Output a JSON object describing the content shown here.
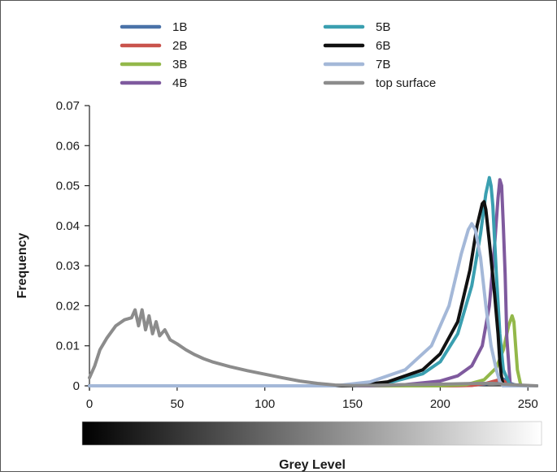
{
  "chart_data": {
    "type": "line",
    "title": "",
    "xlabel": "Grey Level",
    "ylabel": "Frequency",
    "xlim": [
      0,
      255
    ],
    "ylim": [
      0,
      0.07
    ],
    "x_ticks": [
      0,
      50,
      100,
      150,
      200,
      250
    ],
    "y_ticks": [
      0,
      0.01,
      0.02,
      0.03,
      0.04,
      0.05,
      0.06,
      0.07
    ],
    "x_tick_labels": [
      "0",
      "50",
      "100",
      "150",
      "200",
      "250"
    ],
    "y_tick_labels": [
      "0",
      "0.01",
      "0.02",
      "0.03",
      "0.04",
      "0.05",
      "0.06",
      "0.07"
    ],
    "grid": false,
    "legend_position": "top",
    "colorbar": "grayscale gradient from black (0) to white (255) below x-axis",
    "series": [
      {
        "name": "1B",
        "color": "#4a72a8",
        "x": [
          0,
          200,
          215,
          225,
          230,
          233,
          236,
          238,
          240,
          243,
          246,
          255
        ],
        "y": [
          0,
          0,
          0.0001,
          0.0004,
          0.0008,
          0.0013,
          0.0017,
          0.0012,
          0.0006,
          0.0002,
          0,
          0
        ]
      },
      {
        "name": "2B",
        "color": "#c9534c",
        "x": [
          0,
          205,
          218,
          226,
          231,
          234,
          236,
          238,
          240,
          243,
          255
        ],
        "y": [
          0,
          0,
          0.0001,
          0.0006,
          0.0012,
          0.0016,
          0.0013,
          0.0007,
          0.0003,
          0,
          0
        ]
      },
      {
        "name": "3B",
        "color": "#93b84a",
        "x": [
          0,
          200,
          215,
          225,
          232,
          236,
          239,
          241,
          242,
          243,
          244,
          246,
          255
        ],
        "y": [
          0,
          0,
          0.0003,
          0.0015,
          0.0045,
          0.009,
          0.015,
          0.0175,
          0.016,
          0.01,
          0.004,
          0,
          0
        ]
      },
      {
        "name": "4B",
        "color": "#7f5a9e",
        "x": [
          0,
          160,
          180,
          200,
          210,
          218,
          224,
          228,
          231,
          233,
          234,
          235,
          236,
          237,
          238,
          240,
          255
        ],
        "y": [
          0,
          0,
          0.0003,
          0.0012,
          0.0025,
          0.005,
          0.01,
          0.02,
          0.035,
          0.047,
          0.0515,
          0.05,
          0.04,
          0.028,
          0.012,
          0,
          0
        ]
      },
      {
        "name": "5B",
        "color": "#3a9fb0",
        "x": [
          0,
          150,
          170,
          190,
          200,
          210,
          218,
          223,
          226,
          228,
          229,
          230,
          232,
          234,
          236,
          240,
          255
        ],
        "y": [
          0,
          0,
          0.0007,
          0.003,
          0.006,
          0.013,
          0.025,
          0.038,
          0.048,
          0.052,
          0.05,
          0.045,
          0.028,
          0.013,
          0.004,
          0,
          0
        ]
      },
      {
        "name": "6B",
        "color": "#111111",
        "x": [
          0,
          150,
          170,
          190,
          200,
          210,
          217,
          221,
          224,
          225,
          226,
          228,
          231,
          233,
          234,
          235,
          236,
          255
        ],
        "y": [
          0,
          0,
          0.001,
          0.004,
          0.008,
          0.016,
          0.029,
          0.04,
          0.0455,
          0.046,
          0.044,
          0.036,
          0.023,
          0.013,
          0.006,
          0.002,
          0,
          0
        ]
      },
      {
        "name": "7B",
        "color": "#a4b8d8",
        "x": [
          0,
          140,
          160,
          180,
          195,
          205,
          212,
          216,
          218,
          220,
          223,
          226,
          229,
          232,
          234,
          236,
          255
        ],
        "y": [
          0,
          0,
          0.001,
          0.004,
          0.01,
          0.02,
          0.033,
          0.039,
          0.0405,
          0.039,
          0.032,
          0.02,
          0.01,
          0.004,
          0.001,
          0,
          0
        ]
      },
      {
        "name": "top surface",
        "color": "#8c8c8c",
        "x": [
          0,
          3,
          6,
          10,
          15,
          20,
          24,
          26,
          28,
          30,
          32,
          34,
          36,
          38,
          40,
          43,
          46,
          50,
          55,
          60,
          65,
          70,
          80,
          90,
          100,
          110,
          120,
          130,
          140,
          150,
          160,
          170,
          180,
          190,
          200,
          210,
          220,
          230,
          240,
          255
        ],
        "y": [
          0.002,
          0.005,
          0.009,
          0.012,
          0.015,
          0.0165,
          0.017,
          0.019,
          0.015,
          0.019,
          0.014,
          0.0175,
          0.013,
          0.016,
          0.0125,
          0.014,
          0.0115,
          0.0105,
          0.009,
          0.0078,
          0.0068,
          0.006,
          0.0048,
          0.0038,
          0.0029,
          0.002,
          0.0012,
          0.0006,
          0.0002,
          5e-05,
          0.0001,
          0.0002,
          0.0003,
          0.0003,
          0.0004,
          0.0005,
          0.0006,
          0.0006,
          0.0003,
          0
        ]
      }
    ]
  }
}
